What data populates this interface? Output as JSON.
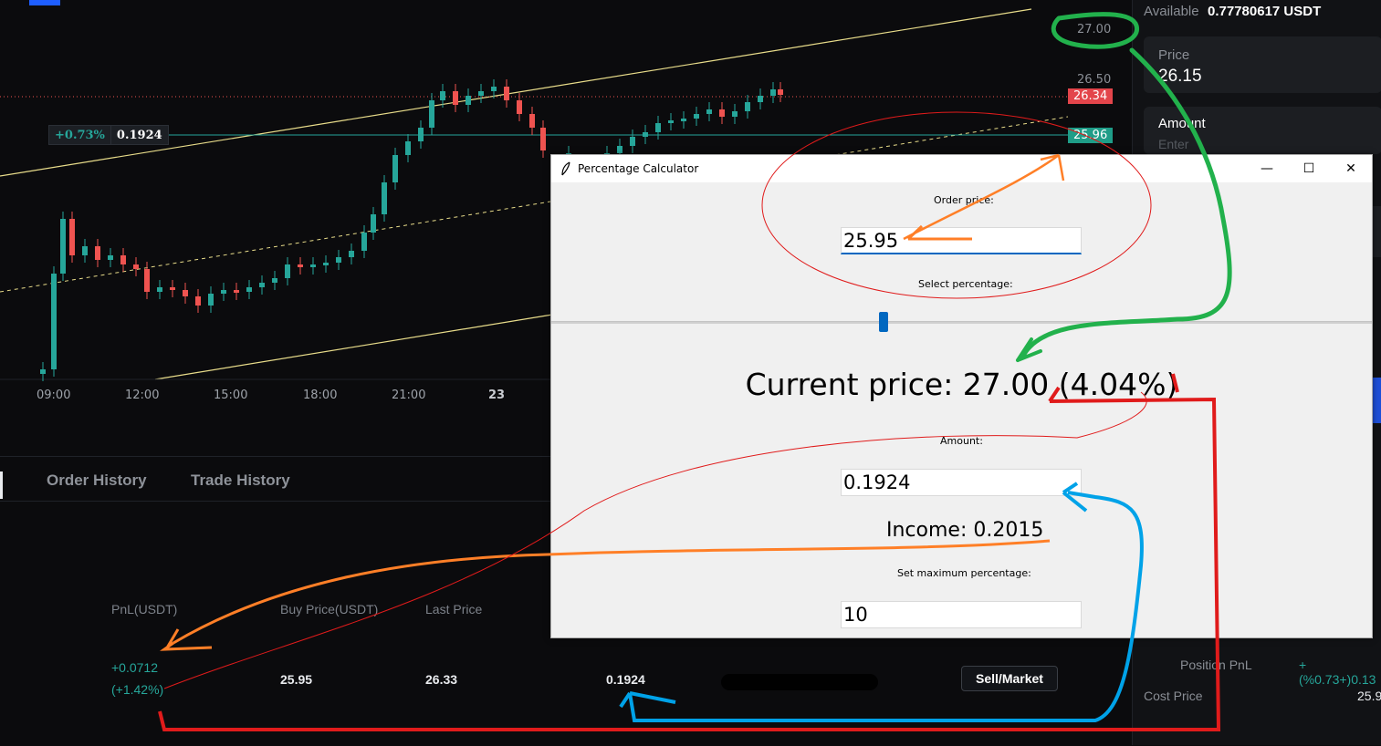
{
  "chart": {
    "price_labels": [
      "27.00",
      "26.50"
    ],
    "last_price_tag": "26.34",
    "position_price_tag": "25.96",
    "position_label": {
      "pct": "+0.73%",
      "amount": "0.1924"
    },
    "time_labels": [
      "09:00",
      "12:00",
      "15:00",
      "18:00",
      "21:00",
      "23"
    ],
    "colors": {
      "up": "#26a69a",
      "down": "#ef5350",
      "channel": "#e8dc8a",
      "position_line": "#26a69a"
    }
  },
  "bottom_panel": {
    "tabs": [
      "Order History",
      "Trade History"
    ],
    "columns": [
      "PnL(USDT)",
      "Buy Price(USDT)",
      "Last Price"
    ],
    "row": {
      "pnl": "+0.0712",
      "pnl_pct": "(+1.42%)",
      "buy_price": "25.95",
      "last_price": "26.33",
      "amount": "0.1924",
      "action": "Sell/Market"
    }
  },
  "right_panel": {
    "available_label": "Available",
    "available_value": "0.77780617 USDT",
    "price_label": "Price",
    "price_value": "26.15",
    "amount_label": "Amount",
    "amount_placeholder": "Enter",
    "position_pnl_label": "Position PnL",
    "position_pnl_value": "+(%0.73+)0.13",
    "cost_price_label": "Cost Price",
    "cost_price_value": "25.9"
  },
  "calculator": {
    "title": "Percentage Calculator",
    "order_price_label": "Order price:",
    "order_price_value": "25.95",
    "select_percentage_label": "Select percentage:",
    "current_price_text": "Current price: 27.00 (4.04%)",
    "amount_label": "Amount:",
    "amount_value": "0.1924",
    "income_text": "Income: 0.2015",
    "max_percentage_label": "Set maximum percentage:",
    "max_percentage_value": "10",
    "slider_fraction": 0.404
  }
}
